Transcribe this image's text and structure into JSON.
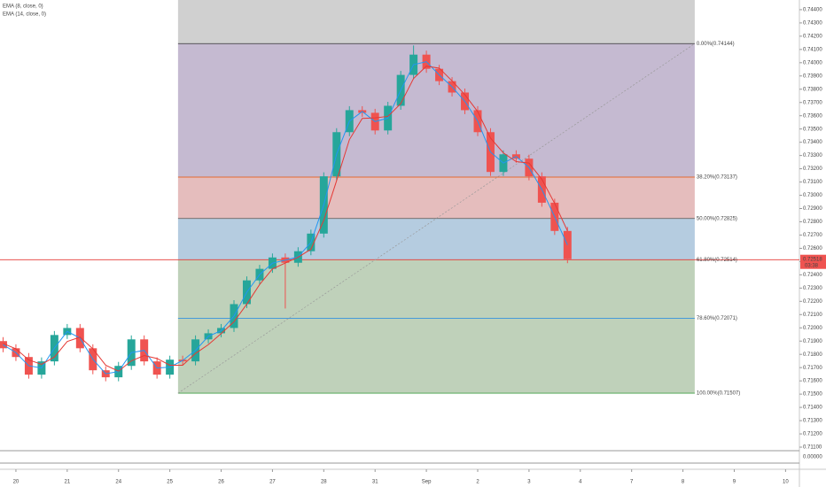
{
  "chart_data": {
    "type": "candlestick",
    "x": [
      -0.25,
      0,
      0.25,
      0.5,
      0.75,
      1,
      1.25,
      1.5,
      1.75,
      2,
      2.25,
      2.5,
      2.75,
      3,
      3.25,
      3.5,
      3.75,
      4,
      4.25,
      4.5,
      4.75,
      5,
      5.25,
      5.5,
      5.75,
      6,
      6.25,
      6.5,
      6.75,
      7,
      7.25,
      7.5,
      7.75,
      8,
      8.25,
      8.5,
      8.75,
      9,
      9.25,
      9.5,
      9.75,
      10,
      10.25,
      10.5,
      10.75
    ],
    "open": [
      0.719,
      0.71846,
      0.7178,
      0.71647,
      0.71747,
      0.71946,
      0.71999,
      0.71846,
      0.7168,
      0.71627,
      0.71713,
      0.71913,
      0.71747,
      0.71647,
      0.7176,
      0.71747,
      0.71913,
      0.71959,
      0.71999,
      0.72179,
      0.72358,
      0.72445,
      0.72531,
      0.72491,
      0.72578,
      0.72711,
      0.73143,
      0.73476,
      0.73642,
      0.73622,
      0.73489,
      0.73675,
      0.73908,
      0.74061,
      0.73954,
      0.73861,
      0.73775,
      0.73642,
      0.73476,
      0.73176,
      0.73309,
      0.73276,
      0.73143,
      0.72944,
      0.72731
    ],
    "high": [
      0.7193,
      0.71876,
      0.7181,
      0.71777,
      0.71976,
      0.72029,
      0.72029,
      0.71876,
      0.7171,
      0.71743,
      0.71943,
      0.71943,
      0.71777,
      0.7179,
      0.7179,
      0.71943,
      0.71989,
      0.72029,
      0.72209,
      0.72388,
      0.72475,
      0.72561,
      0.72561,
      0.72608,
      0.72741,
      0.73173,
      0.73506,
      0.73672,
      0.73672,
      0.73652,
      0.73705,
      0.73938,
      0.7413,
      0.74091,
      0.73984,
      0.73891,
      0.73805,
      0.73672,
      0.73506,
      0.73339,
      0.73339,
      0.73306,
      0.73173,
      0.72974,
      0.72761
    ],
    "low": [
      0.71816,
      0.7175,
      0.71617,
      0.71617,
      0.71717,
      0.71916,
      0.71816,
      0.7165,
      0.71597,
      0.71597,
      0.71683,
      0.71717,
      0.71617,
      0.71617,
      0.71717,
      0.71717,
      0.71883,
      0.71929,
      0.71969,
      0.72149,
      0.72328,
      0.72415,
      0.72146,
      0.72461,
      0.72548,
      0.72681,
      0.73113,
      0.73446,
      0.73592,
      0.73459,
      0.73459,
      0.73645,
      0.73878,
      0.73924,
      0.73831,
      0.73745,
      0.73612,
      0.73446,
      0.73146,
      0.73146,
      0.73246,
      0.73113,
      0.72914,
      0.72701,
      0.72488
    ],
    "close": [
      0.71846,
      0.7178,
      0.71647,
      0.71747,
      0.71946,
      0.71999,
      0.71846,
      0.7168,
      0.71627,
      0.71713,
      0.71913,
      0.71747,
      0.71647,
      0.7176,
      0.71747,
      0.71913,
      0.71959,
      0.71999,
      0.72179,
      0.72358,
      0.72445,
      0.72531,
      0.72491,
      0.72578,
      0.72711,
      0.73143,
      0.73476,
      0.73642,
      0.73622,
      0.73489,
      0.73675,
      0.73908,
      0.74061,
      0.73954,
      0.73861,
      0.73775,
      0.73642,
      0.73476,
      0.73176,
      0.73309,
      0.73276,
      0.73143,
      0.72944,
      0.72731,
      0.72518
    ],
    "up_color": "#26a69a",
    "down_color": "#ef5350",
    "series": [
      {
        "name": "EMA (8, close, 0)",
        "color": "#2196f3",
        "values": [
          0.71873,
          0.71813,
          0.71714,
          0.71697,
          0.71847,
          0.71973,
          0.71923,
          0.71763,
          0.71654,
          0.7167,
          0.71813,
          0.7183,
          0.71697,
          0.71704,
          0.71754,
          0.7183,
          0.71936,
          0.71979,
          0.72089,
          0.72269,
          0.72402,
          0.72488,
          0.72511,
          0.72535,
          0.72645,
          0.72927,
          0.7331,
          0.73559,
          0.73632,
          0.73556,
          0.73582,
          0.73792,
          0.73985,
          0.74008,
          0.73908,
          0.73818,
          0.73709,
          0.73559,
          0.73326,
          0.73243,
          0.73293,
          0.7321,
          0.73044,
          0.72838,
          0.72625
        ]
      },
      {
        "name": "EMA (14, close, 0)",
        "color": "#e53935",
        "values": [
          0.71882,
          0.71842,
          0.71758,
          0.71725,
          0.7178,
          0.71897,
          0.7193,
          0.71842,
          0.71718,
          0.71673,
          0.71751,
          0.71791,
          0.71769,
          0.71718,
          0.71718,
          0.71807,
          0.71873,
          0.71957,
          0.72046,
          0.72179,
          0.72327,
          0.72445,
          0.72489,
          0.72533,
          0.72593,
          0.72811,
          0.7311,
          0.7342,
          0.7358,
          0.73584,
          0.73595,
          0.73691,
          0.73881,
          0.73974,
          0.73959,
          0.73863,
          0.73759,
          0.73631,
          0.73431,
          0.7332,
          0.73254,
          0.73243,
          0.73121,
          0.72939,
          0.72731
        ]
      }
    ],
    "xlim": [
      -0.31,
      15.27
    ],
    "ylim": [
      0.7108,
      0.74473
    ],
    "xticks": [
      {
        "value": 0,
        "label": "20"
      },
      {
        "value": 1,
        "label": "21"
      },
      {
        "value": 2,
        "label": "24"
      },
      {
        "value": 3,
        "label": "25"
      },
      {
        "value": 4,
        "label": "26"
      },
      {
        "value": 5,
        "label": "27"
      },
      {
        "value": 6,
        "label": "28"
      },
      {
        "value": 7,
        "label": "31"
      },
      {
        "value": 8,
        "label": "Sep"
      },
      {
        "value": 9,
        "label": "2"
      },
      {
        "value": 10,
        "label": "3"
      },
      {
        "value": 11,
        "label": "4"
      },
      {
        "value": 12,
        "label": "7"
      },
      {
        "value": 13,
        "label": "8"
      },
      {
        "value": 14,
        "label": "9"
      },
      {
        "value": 15,
        "label": "10"
      }
    ],
    "yticks": [
      {
        "value": 0.744,
        "label": "0.74400"
      },
      {
        "value": 0.743,
        "label": "0.74300"
      },
      {
        "value": 0.742,
        "label": "0.74200"
      },
      {
        "value": 0.741,
        "label": "0.74100"
      },
      {
        "value": 0.74,
        "label": "0.74000"
      },
      {
        "value": 0.739,
        "label": "0.73900"
      },
      {
        "value": 0.738,
        "label": "0.73800"
      },
      {
        "value": 0.737,
        "label": "0.73700"
      },
      {
        "value": 0.736,
        "label": "0.73600"
      },
      {
        "value": 0.735,
        "label": "0.73500"
      },
      {
        "value": 0.734,
        "label": "0.73400"
      },
      {
        "value": 0.733,
        "label": "0.73300"
      },
      {
        "value": 0.732,
        "label": "0.73200"
      },
      {
        "value": 0.731,
        "label": "0.73100"
      },
      {
        "value": 0.73,
        "label": "0.73000"
      },
      {
        "value": 0.729,
        "label": "0.72900"
      },
      {
        "value": 0.728,
        "label": "0.72800"
      },
      {
        "value": 0.727,
        "label": "0.72700"
      },
      {
        "value": 0.726,
        "label": "0.72600"
      },
      {
        "value": 0.725,
        "label": "0.72500"
      },
      {
        "value": 0.724,
        "label": "0.72400"
      },
      {
        "value": 0.723,
        "label": "0.72300"
      },
      {
        "value": 0.722,
        "label": "0.72200"
      },
      {
        "value": 0.721,
        "label": "0.72100"
      },
      {
        "value": 0.72,
        "label": "0.72000"
      },
      {
        "value": 0.719,
        "label": "0.71900"
      },
      {
        "value": 0.718,
        "label": "0.71800"
      },
      {
        "value": 0.717,
        "label": "0.71700"
      },
      {
        "value": 0.716,
        "label": "0.71600"
      },
      {
        "value": 0.715,
        "label": "0.71500"
      },
      {
        "value": 0.714,
        "label": "0.71400"
      },
      {
        "value": 0.713,
        "label": "0.71300"
      },
      {
        "value": 0.712,
        "label": "0.71200"
      },
      {
        "value": 0.711,
        "label": "0.71100"
      }
    ],
    "fib_range_x": [
      3.16,
      13.23
    ],
    "fib_levels": [
      {
        "label": "0.00%(0.74144)",
        "value": 0.74144,
        "color": "#333333",
        "fill": "#dcbfa8"
      },
      {
        "label": "38.20%(0.73137)",
        "value": 0.73137,
        "color": "#e65100",
        "fill": "#bfb2cc"
      },
      {
        "label": "50.00%(0.72825)",
        "value": 0.72825,
        "color": "#555555",
        "fill": "#e2b6b6"
      },
      {
        "label": "61.80%(0.72514)",
        "value": 0.72514,
        "color": "#e53935",
        "fill": "#adc6dd"
      },
      {
        "label": "78.60%(0.72071)",
        "value": 0.72071,
        "color": "#1e88e5",
        "fill": "#b8ccb2"
      },
      {
        "label": "100.00%(0.71507)",
        "value": 0.71507,
        "color": "#43a047",
        "fill": "#b8ccb2"
      }
    ],
    "last_price": 0.72518,
    "last_time": "03:38",
    "lower_yticks": [
      {
        "value": 0,
        "label": "0.00000"
      }
    ]
  }
}
